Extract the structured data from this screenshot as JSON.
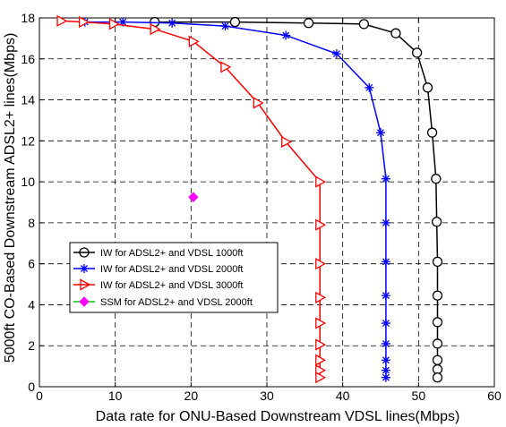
{
  "chart_data": {
    "type": "line",
    "title": "",
    "xlabel": "Data rate  for ONU-Based Downstream VDSL lines(Mbps)",
    "ylabel": "5000ft CO-Based Downstream  ADSL2+ lines(Mbps)",
    "xlim": [
      0,
      60
    ],
    "ylim": [
      0,
      18
    ],
    "xticks": [
      0,
      10,
      20,
      30,
      40,
      50,
      60
    ],
    "yticks": [
      0,
      2,
      4,
      6,
      8,
      10,
      12,
      14,
      16,
      18
    ],
    "x_tick_labels": [
      "0",
      "10",
      "20",
      "30",
      "40",
      "50",
      "60"
    ],
    "y_tick_labels": [
      "0",
      "2",
      "4",
      "6",
      "8",
      "10",
      "12",
      "14",
      "16",
      "18"
    ],
    "grid": true,
    "legend_position": "lower-left",
    "series": [
      {
        "name": "IW for ADSL2+ and VDSL 1000ft",
        "color": "#000000",
        "marker": "circle",
        "points": [
          [
            15.2,
            17.8
          ],
          [
            25.8,
            17.8
          ],
          [
            35.5,
            17.75
          ],
          [
            42.8,
            17.7
          ],
          [
            47.0,
            17.25
          ],
          [
            49.8,
            16.3
          ],
          [
            51.2,
            14.6
          ],
          [
            51.8,
            12.4
          ],
          [
            52.3,
            10.15
          ],
          [
            52.4,
            8.05
          ],
          [
            52.5,
            6.1
          ],
          [
            52.5,
            4.45
          ],
          [
            52.5,
            3.15
          ],
          [
            52.5,
            2.1
          ],
          [
            52.5,
            1.3
          ],
          [
            52.5,
            0.85
          ],
          [
            52.5,
            0.45
          ]
        ]
      },
      {
        "name": "IW for ADSL2+ and VDSL 2000ft",
        "color": "#0000ff",
        "marker": "star",
        "points": [
          [
            6.0,
            17.8
          ],
          [
            11.0,
            17.8
          ],
          [
            17.5,
            17.75
          ],
          [
            24.5,
            17.6
          ],
          [
            32.5,
            17.15
          ],
          [
            39.2,
            16.25
          ],
          [
            43.5,
            14.6
          ],
          [
            45.0,
            12.4
          ],
          [
            45.7,
            10.15
          ],
          [
            45.7,
            8.0
          ],
          [
            45.7,
            6.1
          ],
          [
            45.7,
            4.45
          ],
          [
            45.7,
            3.1
          ],
          [
            45.7,
            2.1
          ],
          [
            45.7,
            1.3
          ],
          [
            45.7,
            0.8
          ],
          [
            45.7,
            0.45
          ]
        ]
      },
      {
        "name": "IW for ADSL2+ and VDSL 3000ft",
        "color": "#ff0000",
        "marker": "triangle-right",
        "points": [
          [
            2.9,
            17.85
          ],
          [
            5.8,
            17.8
          ],
          [
            9.8,
            17.7
          ],
          [
            15.2,
            17.45
          ],
          [
            20.3,
            16.85
          ],
          [
            24.5,
            15.6
          ],
          [
            28.8,
            13.85
          ],
          [
            32.5,
            11.95
          ],
          [
            37.0,
            10.0
          ],
          [
            37.0,
            7.9
          ],
          [
            37.0,
            6.0
          ],
          [
            37.0,
            4.35
          ],
          [
            37.0,
            3.1
          ],
          [
            37.0,
            2.05
          ],
          [
            37.0,
            1.3
          ],
          [
            37.0,
            0.8
          ],
          [
            37.0,
            0.45
          ]
        ]
      },
      {
        "name": "SSM for ADSL2+ and VDSL 2000ft",
        "color": "#ff00ff",
        "marker": "diamond",
        "points": [
          [
            20.3,
            9.25
          ]
        ]
      }
    ]
  }
}
